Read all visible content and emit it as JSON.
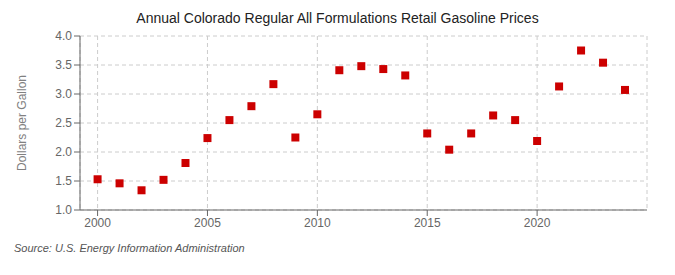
{
  "chart_data": {
    "type": "scatter",
    "title": "Annual Colorado Regular All Formulations Retail Gasoline Prices",
    "ylabel": "Dollars per Gallon",
    "annotation": "Source: U.S. Energy Information Administration",
    "x": [
      2000,
      2001,
      2002,
      2003,
      2004,
      2005,
      2006,
      2007,
      2008,
      2009,
      2010,
      2011,
      2012,
      2013,
      2014,
      2015,
      2016,
      2017,
      2018,
      2019,
      2020,
      2021,
      2022,
      2023,
      2024
    ],
    "values": [
      1.53,
      1.46,
      1.34,
      1.52,
      1.81,
      2.24,
      2.55,
      2.79,
      3.17,
      2.25,
      2.65,
      3.41,
      3.48,
      3.43,
      3.32,
      2.32,
      2.04,
      2.32,
      2.63,
      2.55,
      2.19,
      3.13,
      3.75,
      3.54,
      3.07
    ],
    "color": "#cc0000",
    "marker": "square",
    "xlim": [
      1999.2,
      2025.0
    ],
    "ylim": [
      1.0,
      4.0
    ],
    "xticks": [
      2000,
      2005,
      2010,
      2015,
      2020
    ],
    "yticks": [
      {
        "value": 1.0,
        "label": "1.0"
      },
      1.5,
      {
        "value": 2.0,
        "label": "2.0"
      },
      2.5,
      {
        "value": 3.0,
        "label": "3.0"
      },
      3.5,
      {
        "value": 4.0,
        "label": "4.0"
      }
    ],
    "grid": true
  }
}
